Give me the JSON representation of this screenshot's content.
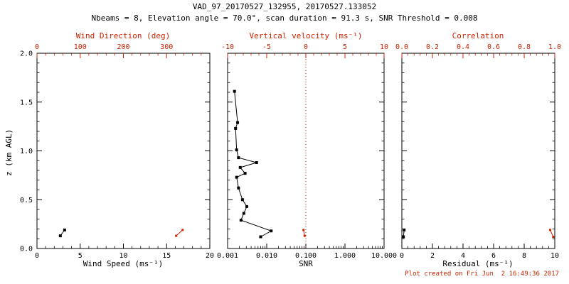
{
  "title": "VAD_97_20170527_132955, 20170527.133052",
  "subtitle": "Nbeams = 8, Elevation angle = 70.0°, scan duration = 91.3 s, SNR Threshold = 0.008",
  "footer": "Plot created on Fri Jun  2 16:49:36 2017",
  "colors": {
    "background": "#ffffff",
    "primary_axis": "#000000",
    "secondary_axis": "#cc2200"
  },
  "chart_data": [
    {
      "type": "scatter",
      "xlabel": "Wind Speed (ms⁻¹)",
      "top_xlabel": "Wind Direction (deg)",
      "ylabel": "z (km AGL)",
      "xlim": [
        0,
        20
      ],
      "top_xlim": [
        0,
        400
      ],
      "ylim": [
        0.0,
        2.0
      ],
      "xticks": [
        0,
        5,
        10,
        15,
        20
      ],
      "top_xticks": [
        0,
        100,
        200,
        300
      ],
      "yticks": [
        0.0,
        0.5,
        1.0,
        1.5,
        2.0
      ],
      "grid": false,
      "series": [
        {
          "name": "wind_speed",
          "axis": "bottom",
          "color": "#000000",
          "points": [
            [
              2.7,
              0.13
            ],
            [
              3.2,
              0.19
            ]
          ]
        },
        {
          "name": "wind_direction",
          "axis": "top",
          "color": "#cc2200",
          "points": [
            [
              322,
              0.13
            ],
            [
              337,
              0.19
            ]
          ]
        }
      ]
    },
    {
      "type": "scatter",
      "xlabel": "SNR",
      "top_xlabel": "Vertical velocity (ms⁻¹)",
      "xscale": "log",
      "xlim": [
        0.001,
        10.0
      ],
      "top_xlim": [
        -10,
        10
      ],
      "ylim": [
        0.0,
        2.0
      ],
      "xticks": [
        0.001,
        0.01,
        0.1,
        1.0,
        10.0
      ],
      "xtick_labels": [
        "0.001",
        "0.010",
        "0.100",
        "1.000",
        "10.000"
      ],
      "top_xticks": [
        -10,
        -5,
        0,
        5,
        10
      ],
      "yticks": [
        0.0,
        0.5,
        1.0,
        1.5,
        2.0
      ],
      "grid": false,
      "refline": {
        "axis": "top",
        "value": 0,
        "style": "dotted",
        "color": "#cc2200"
      },
      "series": [
        {
          "name": "snr_profile",
          "axis": "bottom",
          "color": "#000000",
          "points": [
            [
              0.0015,
              1.61
            ],
            [
              0.0018,
              1.29
            ],
            [
              0.0016,
              1.23
            ],
            [
              0.0017,
              1.01
            ],
            [
              0.0019,
              0.93
            ],
            [
              0.0055,
              0.88
            ],
            [
              0.0021,
              0.83
            ],
            [
              0.0028,
              0.77
            ],
            [
              0.0017,
              0.73
            ],
            [
              0.0019,
              0.62
            ],
            [
              0.0024,
              0.5
            ],
            [
              0.0031,
              0.43
            ],
            [
              0.0026,
              0.36
            ],
            [
              0.0022,
              0.29
            ],
            [
              0.013,
              0.18
            ],
            [
              0.007,
              0.12
            ]
          ]
        },
        {
          "name": "vertical_velocity",
          "axis": "top",
          "color": "#cc2200",
          "points": [
            [
              -0.3,
              0.19
            ],
            [
              -0.15,
              0.13
            ]
          ]
        }
      ]
    },
    {
      "type": "scatter",
      "xlabel": "Residual (ms⁻¹)",
      "top_xlabel": "Correlation",
      "xlim": [
        0,
        10
      ],
      "top_xlim": [
        0.0,
        1.0
      ],
      "ylim": [
        0.0,
        2.0
      ],
      "xticks": [
        0,
        2,
        4,
        6,
        8,
        10
      ],
      "top_xticks": [
        0.0,
        0.2,
        0.4,
        0.6,
        0.8,
        1.0
      ],
      "top_xtick_labels": [
        "0.0",
        "0.2",
        "0.4",
        "0.6",
        "0.8",
        "1.0"
      ],
      "yticks": [
        0.0,
        0.5,
        1.0,
        1.5,
        2.0
      ],
      "grid": false,
      "series": [
        {
          "name": "residual",
          "axis": "bottom",
          "color": "#000000",
          "points": [
            [
              0.1,
              0.12
            ],
            [
              0.15,
              0.19
            ]
          ]
        },
        {
          "name": "correlation",
          "axis": "top",
          "color": "#cc2200",
          "points": [
            [
              0.99,
              0.12
            ],
            [
              0.97,
              0.19
            ]
          ]
        }
      ]
    }
  ]
}
